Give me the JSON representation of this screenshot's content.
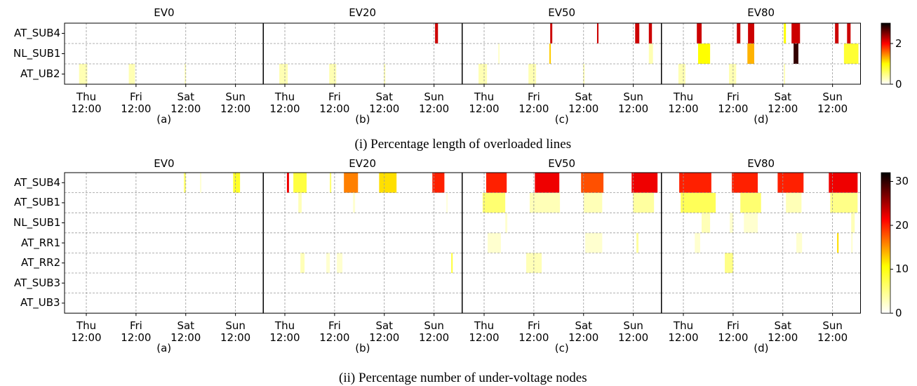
{
  "chart_data": [
    {
      "type": "heatmap",
      "caption": "(i) Percentage length of overloaded lines",
      "rows": [
        "AT_SUB4",
        "NL_SUB1",
        "AT_UB2"
      ],
      "xlim": [
        0,
        96
      ],
      "xticks": [
        {
          "value": 10.5,
          "label": "Thu 12:00"
        },
        {
          "value": 34.5,
          "label": "Fri 12:00"
        },
        {
          "value": 58.5,
          "label": "Sat 12:00"
        },
        {
          "value": 82.5,
          "label": "Sun 12:00"
        }
      ],
      "clim": [
        0,
        3
      ],
      "cticks": [
        0,
        2
      ],
      "colormap": [
        "#ffffff",
        "#ffff00",
        "#ff0000",
        "#000000"
      ],
      "grid": true,
      "panels": [
        {
          "title": "EV0",
          "label": "(a)",
          "cells": [
            [],
            [],
            [
              [
                7,
                11,
                0.3
              ],
              [
                31,
                34,
                0.3
              ],
              [
                58,
                58.6,
                0.3
              ]
            ]
          ]
        },
        {
          "title": "EV20",
          "label": "(b)",
          "cells": [
            [
              [
                83,
                84.4,
                2.2
              ]
            ],
            [],
            [
              [
                7.8,
                11.9,
                0.3
              ],
              [
                31.9,
                35.3,
                0.3
              ],
              [
                58.3,
                59,
                0.3
              ]
            ]
          ]
        },
        {
          "title": "EV50",
          "label": "(c)",
          "cells": [
            [
              [
                42.4,
                43.4,
                2.2
              ],
              [
                65,
                65.7,
                2.2
              ],
              [
                83.4,
                85.4,
                2.2
              ],
              [
                90,
                91.5,
                2.2
              ]
            ],
            [
              [
                17.3,
                18,
                0.2
              ],
              [
                42,
                42.7,
                1.2
              ],
              [
                90,
                92,
                0.3
              ]
            ],
            [
              [
                7.8,
                11.9,
                0.3
              ],
              [
                31.9,
                35.6,
                0.3
              ],
              [
                58.3,
                59,
                0.3
              ]
            ]
          ]
        },
        {
          "title": "EV80",
          "label": "(d)",
          "cells": [
            [
              [
                17,
                19.3,
                2.2
              ],
              [
                36.3,
                38,
                2.2
              ],
              [
                41.7,
                44.7,
                2.2
              ],
              [
                59,
                60,
                1.0
              ],
              [
                62.7,
                66.8,
                2.2
              ],
              [
                83.7,
                85.4,
                2.2
              ],
              [
                89.5,
                91.2,
                2.2
              ]
            ],
            [
              [
                17.6,
                23.4,
                1.0
              ],
              [
                41.4,
                44.7,
                1.3
              ],
              [
                63.7,
                66,
                2.8
              ],
              [
                88,
                95,
                0.8
              ]
            ],
            [
              [
                8.1,
                11.5,
                0.3
              ],
              [
                32.5,
                36,
                0.3
              ],
              [
                59,
                59.6,
                0.3
              ]
            ]
          ]
        }
      ]
    },
    {
      "type": "heatmap",
      "caption": "(ii) Percentage number of under-voltage nodes",
      "rows": [
        "AT_SUB4",
        "AT_SUB1",
        "NL_SUB1",
        "AT_RR1",
        "AT_RR2",
        "AT_SUB3",
        "AT_UB3"
      ],
      "xlim": [
        0,
        96
      ],
      "xticks": [
        {
          "value": 10.5,
          "label": "Thu 12:00"
        },
        {
          "value": 34.5,
          "label": "Fri 12:00"
        },
        {
          "value": 58.5,
          "label": "Sat 12:00"
        },
        {
          "value": 82.5,
          "label": "Sun 12:00"
        }
      ],
      "clim": [
        0,
        32
      ],
      "cticks": [
        0,
        10,
        20,
        30
      ],
      "colormap": [
        "#ffffff",
        "#ffff00",
        "#ff0000",
        "#000000"
      ],
      "grid": true,
      "panels": [
        {
          "title": "EV0",
          "label": "(a)",
          "cells": [
            [
              [
                57.6,
                58.6,
                6
              ],
              [
                65.4,
                66,
                2
              ],
              [
                81.4,
                84.7,
                9
              ]
            ],
            [],
            [],
            [],
            [],
            [],
            []
          ]
        },
        {
          "title": "EV20",
          "label": "(b)",
          "cells": [
            [
              [
                11.5,
                12.5,
                22
              ],
              [
                14.6,
                21,
                8
              ],
              [
                32.2,
                32.9,
                6
              ],
              [
                39,
                45.8,
                16
              ],
              [
                56,
                64.4,
                12
              ],
              [
                81.7,
                87.5,
                20
              ]
            ],
            [
              [
                17,
                18.6,
                3
              ],
              [
                43.4,
                44.4,
                2
              ],
              [
                88.5,
                89,
                2
              ]
            ],
            [],
            [],
            [
              [
                18,
                20,
                3
              ],
              [
                30.5,
                32.2,
                2
              ],
              [
                35.6,
                38.3,
                2
              ],
              [
                90.8,
                91.5,
                8
              ]
            ],
            [],
            []
          ]
        },
        {
          "title": "EV50",
          "label": "(c)",
          "cells": [
            [
              [
                11.5,
                21.4,
                20
              ],
              [
                35,
                46.8,
                22
              ],
              [
                57.3,
                68.1,
                18
              ],
              [
                81.7,
                94.2,
                22
              ]
            ],
            [
              [
                9.8,
                20.7,
                6
              ],
              [
                32.5,
                47.1,
                3
              ],
              [
                58.6,
                67.5,
                3
              ],
              [
                82.4,
                92.5,
                4
              ]
            ],
            [
              [
                20.7,
                21.7,
                2
              ]
            ],
            [
              [
                12.2,
                18.6,
                2
              ],
              [
                59.3,
                67.5,
                2
              ],
              [
                84,
                85,
                4
              ]
            ],
            [
              [
                30.8,
                38.3,
                3
              ]
            ],
            [],
            []
          ]
        },
        {
          "title": "EV80",
          "label": "(d)",
          "cells": [
            [
              [
                8.5,
                24,
                20
              ],
              [
                33.9,
                46.4,
                20
              ],
              [
                56,
                68.5,
                20
              ],
              [
                80.7,
                94.6,
                22
              ]
            ],
            [
              [
                9.2,
                26.1,
                7
              ],
              [
                38,
                48,
                6
              ],
              [
                60,
                67.5,
                3
              ],
              [
                81.4,
                94.6,
                5
              ]
            ],
            [
              [
                19.3,
                23.4,
                3
              ],
              [
                32.9,
                34.6,
                2
              ],
              [
                39.7,
                46.4,
                2
              ],
              [
                91.5,
                93.2,
                3
              ]
            ],
            [
              [
                16,
                18.6,
                2
              ],
              [
                65,
                67.8,
                2
              ],
              [
                84.7,
                85.4,
                12
              ],
              [
                91.5,
                92.2,
                2
              ]
            ],
            [
              [
                30.5,
                34.6,
                5
              ]
            ],
            [],
            []
          ]
        }
      ]
    }
  ]
}
